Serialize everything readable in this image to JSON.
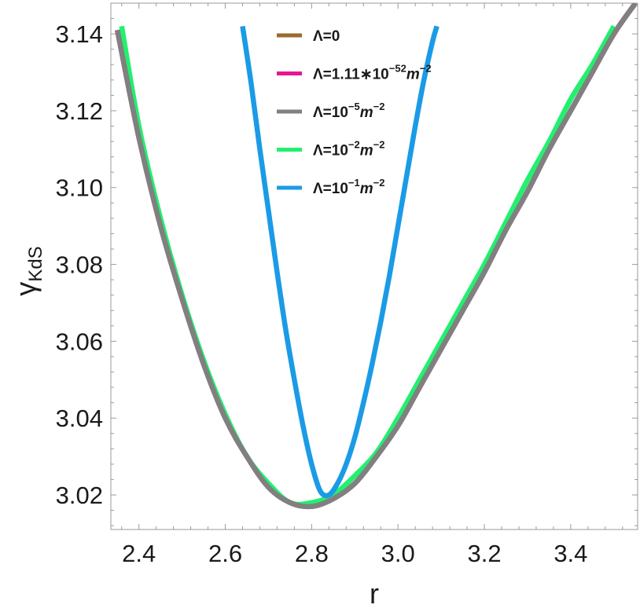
{
  "chart_data": {
    "type": "line",
    "xlabel": "r",
    "ylabel": "γ",
    "ylabel_sub": "KdS",
    "xlim": [
      2.335,
      3.555
    ],
    "ylim": [
      3.011,
      3.148
    ],
    "x_ticks": [
      "2.4",
      "2.6",
      "2.8",
      "3.0",
      "3.2",
      "3.4"
    ],
    "y_ticks": [
      "3.02",
      "3.04",
      "3.06",
      "3.08",
      "3.10",
      "3.12",
      "3.14"
    ],
    "grid": false,
    "legend_position": "top-center",
    "series": [
      {
        "name": "Λ=0",
        "legend": {
          "base": "Λ=0",
          "sup": "",
          "unit": "",
          "unit_sup": ""
        },
        "color": "#9a6a2e",
        "x": [
          2.35,
          2.4,
          2.45,
          2.5,
          2.55,
          2.6,
          2.65,
          2.7,
          2.75,
          2.8,
          2.85,
          2.9,
          2.95,
          3.0,
          3.05,
          3.1,
          3.15,
          3.2,
          3.25,
          3.3,
          3.35,
          3.4,
          3.45,
          3.5,
          3.55
        ],
        "y": [
          3.141,
          3.113,
          3.09,
          3.071,
          3.054,
          3.04,
          3.03,
          3.022,
          3.018,
          3.017,
          3.019,
          3.023,
          3.03,
          3.038,
          3.048,
          3.058,
          3.068,
          3.078,
          3.089,
          3.099,
          3.11,
          3.12,
          3.13,
          3.14,
          3.148
        ]
      },
      {
        "name": "Λ=1.11*10^-52 m^-2",
        "legend": {
          "base": "Λ=1.11∗10",
          "sup": "−52",
          "unit": "m",
          "unit_sup": "−2"
        },
        "color": "#e6178f",
        "x": [
          2.35,
          2.4,
          2.45,
          2.5,
          2.55,
          2.6,
          2.65,
          2.7,
          2.75,
          2.8,
          2.85,
          2.9,
          2.95,
          3.0,
          3.05,
          3.1,
          3.15,
          3.2,
          3.25,
          3.3,
          3.35,
          3.4,
          3.45,
          3.5,
          3.55
        ],
        "y": [
          3.141,
          3.113,
          3.09,
          3.071,
          3.054,
          3.04,
          3.03,
          3.022,
          3.018,
          3.017,
          3.019,
          3.023,
          3.03,
          3.038,
          3.048,
          3.058,
          3.068,
          3.078,
          3.089,
          3.099,
          3.11,
          3.12,
          3.13,
          3.14,
          3.148
        ]
      },
      {
        "name": "Λ=10^-5 m^-2",
        "legend": {
          "base": "Λ=10",
          "sup": "−5",
          "unit": "m",
          "unit_sup": "−2"
        },
        "color": "#808080",
        "x": [
          2.35,
          2.4,
          2.45,
          2.5,
          2.55,
          2.6,
          2.65,
          2.7,
          2.75,
          2.8,
          2.85,
          2.9,
          2.95,
          3.0,
          3.05,
          3.1,
          3.15,
          3.2,
          3.25,
          3.3,
          3.35,
          3.4,
          3.45,
          3.5,
          3.55
        ],
        "y": [
          3.141,
          3.113,
          3.09,
          3.071,
          3.054,
          3.04,
          3.03,
          3.022,
          3.018,
          3.017,
          3.019,
          3.023,
          3.03,
          3.038,
          3.048,
          3.058,
          3.068,
          3.078,
          3.089,
          3.099,
          3.11,
          3.12,
          3.13,
          3.14,
          3.148
        ]
      },
      {
        "name": "Λ=10^-2 m^-2",
        "legend": {
          "base": "Λ=10",
          "sup": "−2",
          "unit": "m",
          "unit_sup": "−2"
        },
        "color": "#22f06e",
        "x": [
          2.36,
          2.4,
          2.45,
          2.5,
          2.55,
          2.6,
          2.65,
          2.7,
          2.75,
          2.8,
          2.85,
          2.9,
          2.95,
          3.0,
          3.05,
          3.1,
          3.15,
          3.2,
          3.25,
          3.3,
          3.35,
          3.4,
          3.45,
          3.5
        ],
        "y": [
          3.142,
          3.116,
          3.092,
          3.072,
          3.055,
          3.041,
          3.03,
          3.023,
          3.018,
          3.018,
          3.02,
          3.025,
          3.031,
          3.04,
          3.05,
          3.06,
          3.07,
          3.08,
          3.091,
          3.102,
          3.112,
          3.123,
          3.132,
          3.142
        ]
      },
      {
        "name": "Λ=10^-1 m^-2",
        "legend": {
          "base": "Λ=10",
          "sup": "−1",
          "unit": "m",
          "unit_sup": "−2"
        },
        "color": "#1b9be6",
        "x": [
          2.64,
          2.66,
          2.68,
          2.7,
          2.72,
          2.74,
          2.76,
          2.78,
          2.8,
          2.82,
          2.84,
          2.86,
          2.88,
          2.9,
          2.92,
          2.94,
          2.96,
          2.98,
          3.0,
          3.02,
          3.04,
          3.06,
          3.08,
          3.09
        ],
        "y": [
          3.142,
          3.127,
          3.11,
          3.094,
          3.078,
          3.063,
          3.05,
          3.038,
          3.028,
          3.021,
          3.02,
          3.023,
          3.028,
          3.035,
          3.044,
          3.054,
          3.065,
          3.077,
          3.09,
          3.103,
          3.116,
          3.128,
          3.138,
          3.142
        ]
      }
    ]
  }
}
